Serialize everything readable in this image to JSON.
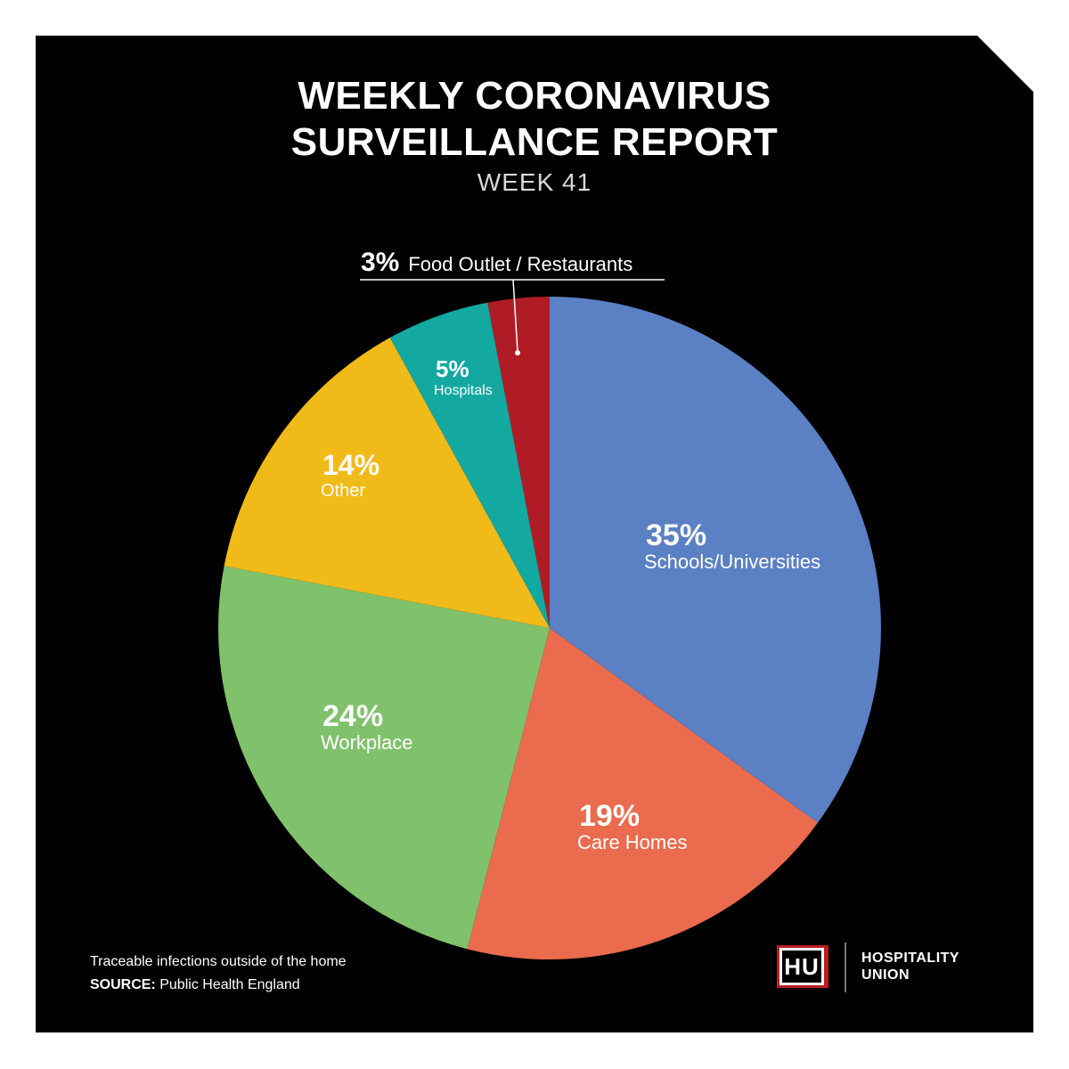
{
  "header": {
    "title_line1": "WEEKLY CORONAVIRUS",
    "title_line2": "SURVEILLANCE REPORT",
    "subtitle": "WEEK 41"
  },
  "chart_data": {
    "type": "pie",
    "title": "WEEKLY CORONAVIRUS SURVEILLANCE REPORT",
    "subtitle": "WEEK 41",
    "start_angle_deg": 0,
    "direction": "clockwise",
    "slices": [
      {
        "label": "Schools/Universities",
        "value": 35,
        "pct_label": "35%",
        "color": "#5b80c4"
      },
      {
        "label": "Care Homes",
        "value": 19,
        "pct_label": "19%",
        "color": "#ea6b4d"
      },
      {
        "label": "Workplace",
        "value": 24,
        "pct_label": "24%",
        "color": "#80c16c"
      },
      {
        "label": "Other",
        "value": 14,
        "pct_label": "14%",
        "color": "#f0ba19"
      },
      {
        "label": "Hospitals",
        "value": 5,
        "pct_label": "5%",
        "color": "#13a8a0"
      },
      {
        "label": "Food Outlet / Restaurants",
        "value": 3,
        "pct_label": "3%",
        "color": "#b01c26"
      }
    ]
  },
  "footer": {
    "note": "Traceable infections outside of the home",
    "source_label": "SOURCE:",
    "source_value": "Public Health England"
  },
  "logo": {
    "mark": "HU",
    "name_line1": "HOSPITALITY",
    "name_line2": "UNION",
    "accent": "#b81f24"
  }
}
